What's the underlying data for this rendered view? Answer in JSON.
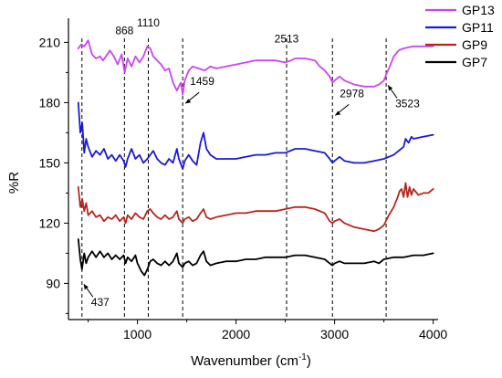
{
  "chart_data": {
    "type": "line",
    "title": "",
    "xlabel": "Wavenumber (cm",
    "xlabel_sup": "-1",
    "xlabel_close": ")",
    "ylabel": "%R",
    "xlim": [
      300,
      4050
    ],
    "ylim": [
      72,
      222
    ],
    "x_ticks": [
      1000,
      2000,
      3000,
      4000
    ],
    "x_tick_labels": [
      "1000",
      "2000",
      "3000",
      "4000"
    ],
    "y_ticks": [
      90,
      120,
      150,
      180,
      210
    ],
    "y_tick_labels": [
      "90",
      "120",
      "150",
      "180",
      "210"
    ],
    "legend_position": "top-right",
    "series": [
      {
        "name": "GP13",
        "color": "#cc44ee",
        "points": [
          [
            400,
            207
          ],
          [
            430,
            209
          ],
          [
            460,
            208
          ],
          [
            500,
            211
          ],
          [
            540,
            204
          ],
          [
            580,
            202
          ],
          [
            620,
            203
          ],
          [
            650,
            201
          ],
          [
            680,
            203
          ],
          [
            720,
            206
          ],
          [
            760,
            203
          ],
          [
            800,
            199
          ],
          [
            840,
            204
          ],
          [
            870,
            195
          ],
          [
            900,
            202
          ],
          [
            940,
            198
          ],
          [
            980,
            203
          ],
          [
            1020,
            200
          ],
          [
            1060,
            203
          ],
          [
            1100,
            208
          ],
          [
            1130,
            207
          ],
          [
            1160,
            203
          ],
          [
            1200,
            201
          ],
          [
            1240,
            199
          ],
          [
            1280,
            196
          ],
          [
            1320,
            197
          ],
          [
            1360,
            190
          ],
          [
            1400,
            186
          ],
          [
            1440,
            190
          ],
          [
            1459,
            184
          ],
          [
            1480,
            191
          ],
          [
            1520,
            196
          ],
          [
            1560,
            198
          ],
          [
            1620,
            197
          ],
          [
            1680,
            196
          ],
          [
            1740,
            198
          ],
          [
            1800,
            197
          ],
          [
            1900,
            198
          ],
          [
            2000,
            199
          ],
          [
            2100,
            200
          ],
          [
            2200,
            201
          ],
          [
            2300,
            201
          ],
          [
            2400,
            201
          ],
          [
            2500,
            200
          ],
          [
            2560,
            201
          ],
          [
            2600,
            202
          ],
          [
            2700,
            202
          ],
          [
            2800,
            201
          ],
          [
            2850,
            198
          ],
          [
            2900,
            196
          ],
          [
            2950,
            193
          ],
          [
            2978,
            190
          ],
          [
            3000,
            191
          ],
          [
            3050,
            193
          ],
          [
            3100,
            191
          ],
          [
            3200,
            189
          ],
          [
            3300,
            188
          ],
          [
            3400,
            188
          ],
          [
            3450,
            189
          ],
          [
            3500,
            191
          ],
          [
            3523,
            194
          ],
          [
            3560,
            198
          ],
          [
            3600,
            203
          ],
          [
            3650,
            206
          ],
          [
            3700,
            207
          ],
          [
            3800,
            208
          ],
          [
            3900,
            208
          ],
          [
            4000,
            208
          ]
        ]
      },
      {
        "name": "GP11",
        "color": "#1a1ad6",
        "points": [
          [
            400,
            180
          ],
          [
            420,
            165
          ],
          [
            440,
            170
          ],
          [
            460,
            155
          ],
          [
            480,
            162
          ],
          [
            500,
            158
          ],
          [
            540,
            153
          ],
          [
            580,
            156
          ],
          [
            620,
            154
          ],
          [
            660,
            157
          ],
          [
            700,
            152
          ],
          [
            740,
            154
          ],
          [
            780,
            151
          ],
          [
            820,
            154
          ],
          [
            860,
            151
          ],
          [
            880,
            148
          ],
          [
            900,
            152
          ],
          [
            940,
            157
          ],
          [
            980,
            152
          ],
          [
            1020,
            154
          ],
          [
            1060,
            150
          ],
          [
            1100,
            152
          ],
          [
            1130,
            154
          ],
          [
            1160,
            156
          ],
          [
            1200,
            152
          ],
          [
            1240,
            150
          ],
          [
            1280,
            149
          ],
          [
            1320,
            152
          ],
          [
            1360,
            150
          ],
          [
            1400,
            157
          ],
          [
            1420,
            152
          ],
          [
            1459,
            147
          ],
          [
            1480,
            151
          ],
          [
            1520,
            154
          ],
          [
            1560,
            151
          ],
          [
            1600,
            149
          ],
          [
            1640,
            160
          ],
          [
            1670,
            165
          ],
          [
            1700,
            157
          ],
          [
            1740,
            154
          ],
          [
            1800,
            152
          ],
          [
            1900,
            152
          ],
          [
            2000,
            152
          ],
          [
            2100,
            153
          ],
          [
            2200,
            154
          ],
          [
            2300,
            154
          ],
          [
            2400,
            155
          ],
          [
            2500,
            155
          ],
          [
            2600,
            157
          ],
          [
            2700,
            157
          ],
          [
            2800,
            156
          ],
          [
            2900,
            155
          ],
          [
            2950,
            152
          ],
          [
            2978,
            150
          ],
          [
            3000,
            151
          ],
          [
            3050,
            153
          ],
          [
            3100,
            151
          ],
          [
            3200,
            150
          ],
          [
            3300,
            150
          ],
          [
            3400,
            151
          ],
          [
            3500,
            152
          ],
          [
            3600,
            154
          ],
          [
            3700,
            158
          ],
          [
            3720,
            162
          ],
          [
            3750,
            160
          ],
          [
            3780,
            163
          ],
          [
            3800,
            162
          ],
          [
            3900,
            163
          ],
          [
            4000,
            164
          ]
        ]
      },
      {
        "name": "GP9",
        "color": "#b8261b",
        "points": [
          [
            400,
            138
          ],
          [
            420,
            128
          ],
          [
            440,
            132
          ],
          [
            460,
            126
          ],
          [
            480,
            130
          ],
          [
            500,
            124
          ],
          [
            540,
            126
          ],
          [
            580,
            123
          ],
          [
            620,
            124
          ],
          [
            660,
            121
          ],
          [
            700,
            123
          ],
          [
            740,
            122
          ],
          [
            780,
            124
          ],
          [
            820,
            121
          ],
          [
            860,
            123
          ],
          [
            880,
            120
          ],
          [
            900,
            124
          ],
          [
            940,
            122
          ],
          [
            980,
            125
          ],
          [
            1020,
            123
          ],
          [
            1060,
            122
          ],
          [
            1100,
            126
          ],
          [
            1130,
            127
          ],
          [
            1160,
            125
          ],
          [
            1200,
            123
          ],
          [
            1240,
            122
          ],
          [
            1280,
            124
          ],
          [
            1320,
            122
          ],
          [
            1360,
            123
          ],
          [
            1400,
            126
          ],
          [
            1420,
            122
          ],
          [
            1459,
            120
          ],
          [
            1480,
            122
          ],
          [
            1520,
            123
          ],
          [
            1560,
            121
          ],
          [
            1600,
            122
          ],
          [
            1640,
            125
          ],
          [
            1670,
            127
          ],
          [
            1700,
            123
          ],
          [
            1740,
            122
          ],
          [
            1800,
            123
          ],
          [
            1900,
            124
          ],
          [
            2000,
            125
          ],
          [
            2100,
            125
          ],
          [
            2200,
            126
          ],
          [
            2300,
            126
          ],
          [
            2400,
            126
          ],
          [
            2500,
            127
          ],
          [
            2600,
            128
          ],
          [
            2700,
            128
          ],
          [
            2800,
            127
          ],
          [
            2900,
            125
          ],
          [
            2950,
            121
          ],
          [
            2978,
            120
          ],
          [
            3000,
            121
          ],
          [
            3050,
            122
          ],
          [
            3100,
            120
          ],
          [
            3200,
            118
          ],
          [
            3300,
            117
          ],
          [
            3400,
            116
          ],
          [
            3450,
            117
          ],
          [
            3500,
            119
          ],
          [
            3550,
            124
          ],
          [
            3600,
            128
          ],
          [
            3640,
            133
          ],
          [
            3660,
            136
          ],
          [
            3680,
            137
          ],
          [
            3700,
            133
          ],
          [
            3720,
            140
          ],
          [
            3740,
            133
          ],
          [
            3760,
            138
          ],
          [
            3780,
            134
          ],
          [
            3800,
            137
          ],
          [
            3850,
            134
          ],
          [
            3900,
            135
          ],
          [
            3950,
            135
          ],
          [
            4000,
            137
          ]
        ]
      },
      {
        "name": "GP7",
        "color": "#000000",
        "points": [
          [
            400,
            112
          ],
          [
            420,
            102
          ],
          [
            437,
            97
          ],
          [
            460,
            105
          ],
          [
            480,
            100
          ],
          [
            500,
            103
          ],
          [
            540,
            106
          ],
          [
            580,
            103
          ],
          [
            620,
            106
          ],
          [
            660,
            103
          ],
          [
            700,
            105
          ],
          [
            740,
            102
          ],
          [
            780,
            104
          ],
          [
            820,
            102
          ],
          [
            860,
            104
          ],
          [
            880,
            100
          ],
          [
            900,
            103
          ],
          [
            940,
            101
          ],
          [
            980,
            104
          ],
          [
            1000,
            100
          ],
          [
            1040,
            96
          ],
          [
            1070,
            94
          ],
          [
            1100,
            97
          ],
          [
            1130,
            101
          ],
          [
            1160,
            102
          ],
          [
            1200,
            100
          ],
          [
            1240,
            99
          ],
          [
            1280,
            101
          ],
          [
            1320,
            99
          ],
          [
            1360,
            101
          ],
          [
            1400,
            105
          ],
          [
            1420,
            100
          ],
          [
            1459,
            98
          ],
          [
            1480,
            100
          ],
          [
            1520,
            101
          ],
          [
            1560,
            99
          ],
          [
            1600,
            100
          ],
          [
            1640,
            104
          ],
          [
            1670,
            106
          ],
          [
            1700,
            101
          ],
          [
            1740,
            99
          ],
          [
            1800,
            100
          ],
          [
            1900,
            101
          ],
          [
            2000,
            101
          ],
          [
            2100,
            102
          ],
          [
            2200,
            102
          ],
          [
            2300,
            103
          ],
          [
            2400,
            103
          ],
          [
            2500,
            103
          ],
          [
            2600,
            104
          ],
          [
            2700,
            104
          ],
          [
            2800,
            103
          ],
          [
            2900,
            102
          ],
          [
            2950,
            100
          ],
          [
            2978,
            99
          ],
          [
            3000,
            100
          ],
          [
            3050,
            101
          ],
          [
            3100,
            100
          ],
          [
            3200,
            100
          ],
          [
            3300,
            100
          ],
          [
            3400,
            101
          ],
          [
            3450,
            100
          ],
          [
            3500,
            102
          ],
          [
            3600,
            103
          ],
          [
            3700,
            103
          ],
          [
            3800,
            104
          ],
          [
            3900,
            104
          ],
          [
            4000,
            105
          ]
        ]
      }
    ],
    "vlines": [
      437,
      868,
      1110,
      1459,
      2513,
      2978,
      3523
    ],
    "annotations": [
      {
        "text": "868",
        "x": 868,
        "y": 214,
        "arrow": "none"
      },
      {
        "text": "1110",
        "x": 1110,
        "y": 218,
        "arrow": "none"
      },
      {
        "text": "2513",
        "x": 2513,
        "y": 210,
        "arrow": "none"
      },
      {
        "text": "1459",
        "x": 1459,
        "y": 186,
        "arrow": "left-down"
      },
      {
        "text": "2978",
        "x": 2978,
        "y": 180,
        "arrow": "left-down"
      },
      {
        "text": "3523",
        "x": 3523,
        "y": 185,
        "arrow": "left-up"
      },
      {
        "text": "437",
        "x": 437,
        "y": 86,
        "arrow": "left-up"
      }
    ]
  }
}
